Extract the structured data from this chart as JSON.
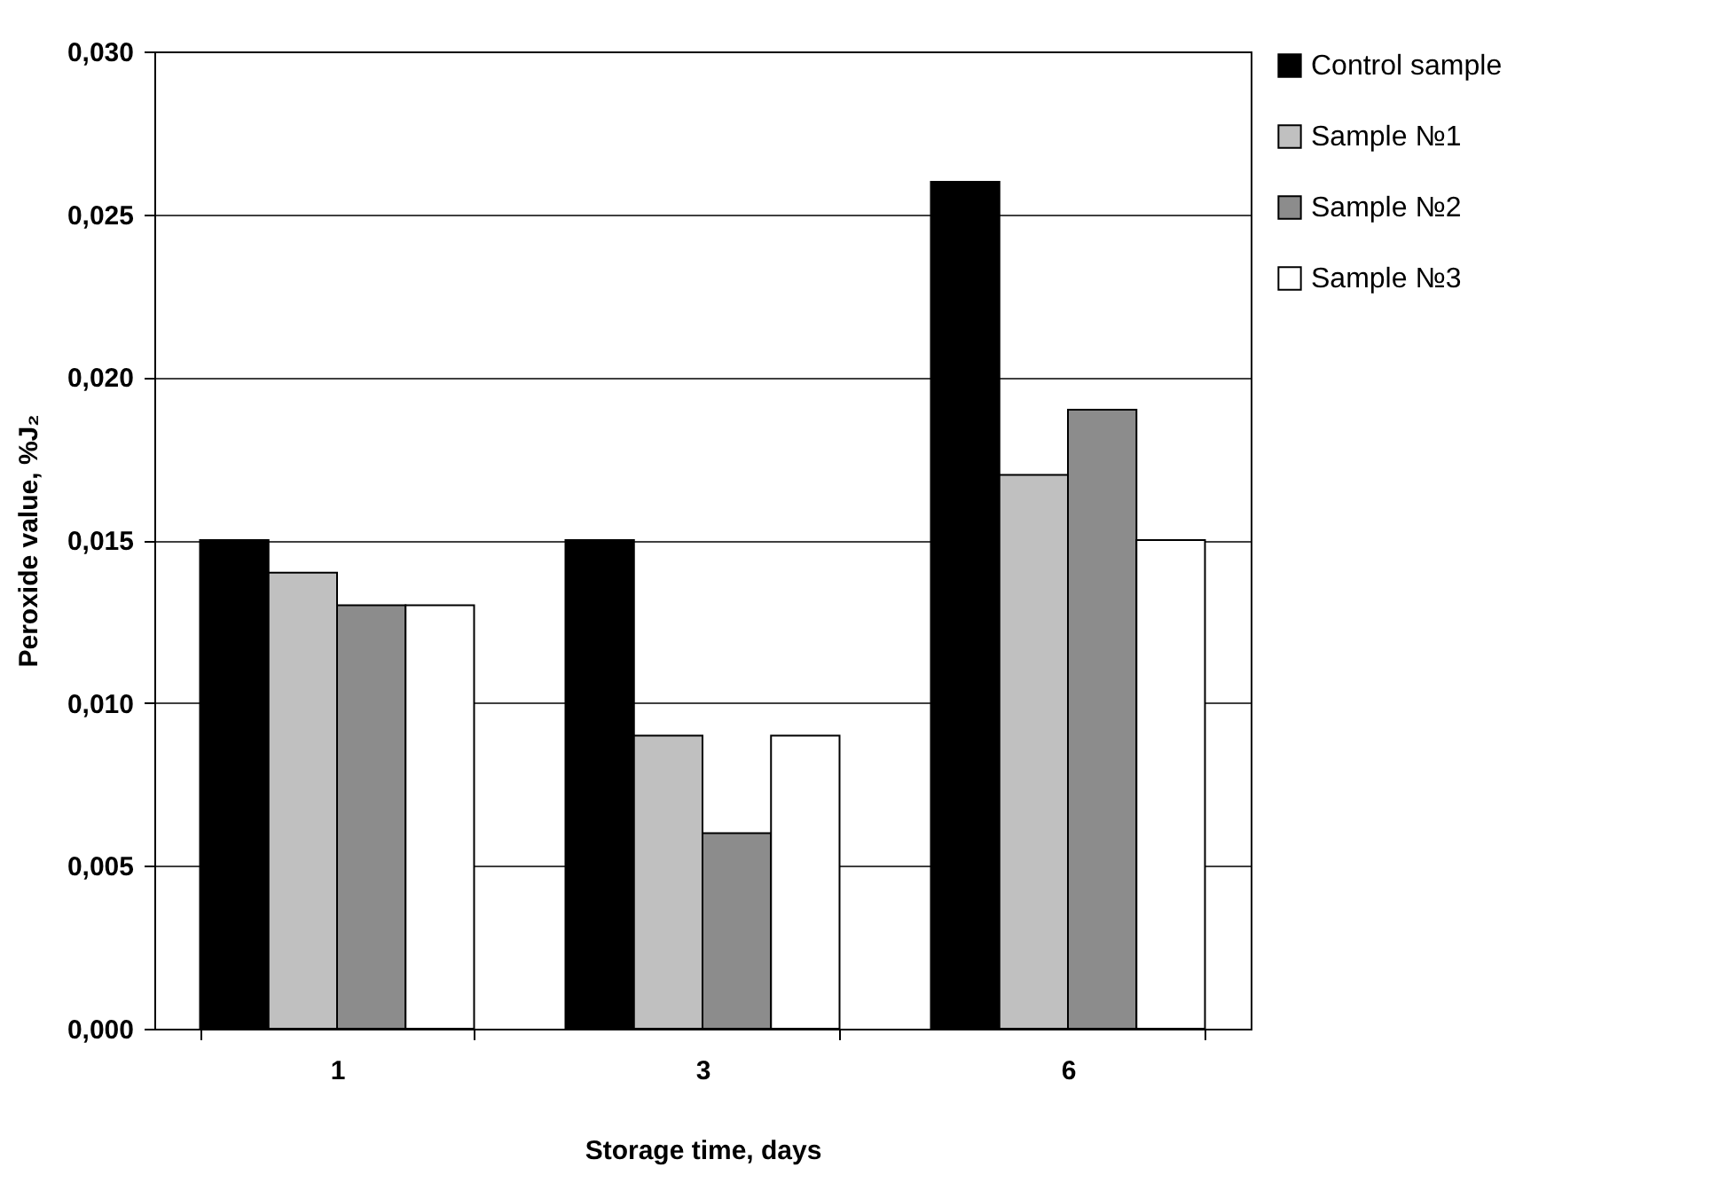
{
  "chart_data": {
    "type": "bar",
    "xlabel": "Storage time, days",
    "ylabel": "Peroxide value, %J₂",
    "categories": [
      "1",
      "3",
      "6"
    ],
    "series": [
      {
        "name": "Control sample",
        "color": "#000000",
        "values": [
          0.015,
          0.015,
          0.026
        ]
      },
      {
        "name": "Sample №1",
        "color": "#c0c0c0",
        "values": [
          0.014,
          0.009,
          0.017
        ]
      },
      {
        "name": "Sample №2",
        "color": "#8c8c8c",
        "values": [
          0.013,
          0.006,
          0.019
        ]
      },
      {
        "name": "Sample №3",
        "color": "#ffffff",
        "values": [
          0.013,
          0.009,
          0.015
        ]
      }
    ],
    "ylim": [
      0,
      0.03
    ],
    "yticks": [
      {
        "value": 0,
        "label": "0,000"
      },
      {
        "value": 0.005,
        "label": "0,005"
      },
      {
        "value": 0.01,
        "label": "0,010"
      },
      {
        "value": 0.015,
        "label": "0,015"
      },
      {
        "value": 0.02,
        "label": "0,020"
      },
      {
        "value": 0.025,
        "label": "0,025"
      },
      {
        "value": 0.03,
        "label": "0,030"
      }
    ],
    "grid": "y",
    "legend": "right"
  }
}
